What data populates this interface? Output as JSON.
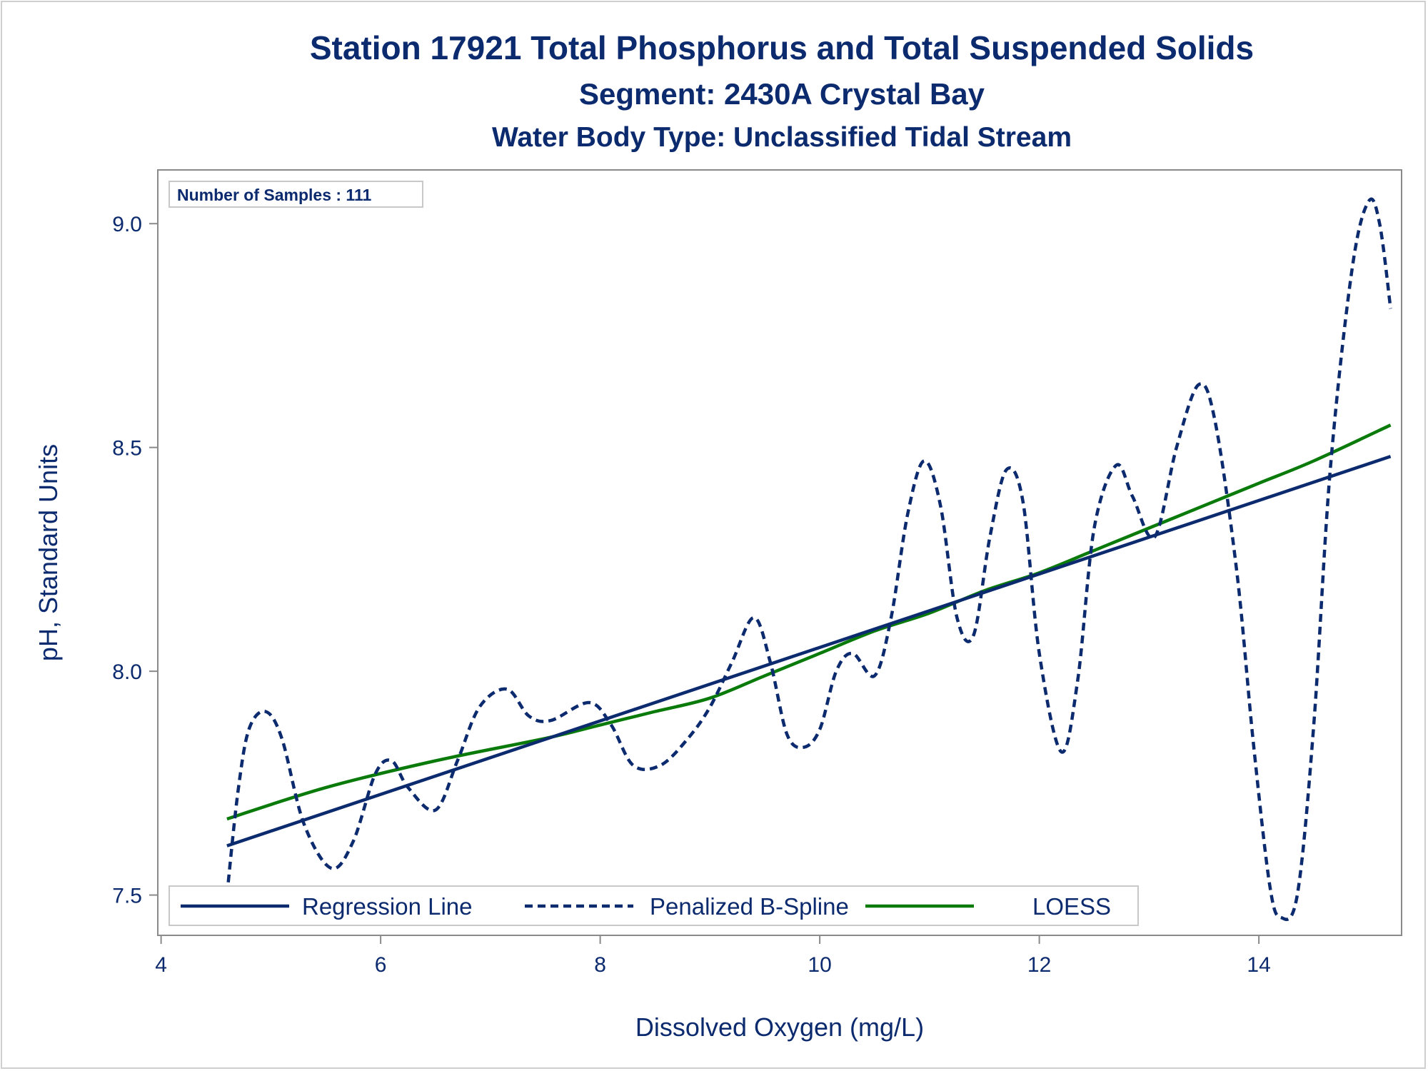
{
  "chart_data": {
    "type": "line",
    "title": "Station 17921  Total Phosphorus and Total Suspended Solids",
    "subtitle": "Segment: 2430A  Crystal Bay",
    "subtitle2": "Water Body Type: Unclassified Tidal Stream",
    "xlabel": "Dissolved Oxygen (mg/L)",
    "ylabel": "pH, Standard Units",
    "xlim": [
      3.97,
      15.3
    ],
    "ylim": [
      7.41,
      9.12
    ],
    "xticks": [
      4,
      6,
      8,
      10,
      12,
      14
    ],
    "yticks": [
      7.5,
      8.0,
      8.5,
      9.0
    ],
    "xtick_labels": [
      "4",
      "6",
      "8",
      "10",
      "12",
      "14"
    ],
    "ytick_labels": [
      "7.5",
      "8.0",
      "8.5",
      "9.0"
    ],
    "inset_text": "Number of Samples : 111",
    "grid": false,
    "legend_position": "bottom-left",
    "series": [
      {
        "name": "Regression Line",
        "style": "solid",
        "color": "#0c2a6e",
        "x": [
          4.6,
          15.2
        ],
        "y": [
          7.61,
          8.48
        ]
      },
      {
        "name": "Penalized B-Spline",
        "style": "dashed",
        "color": "#0c2a6e",
        "x": [
          4.6,
          4.7,
          4.8,
          4.95,
          5.1,
          5.3,
          5.55,
          5.75,
          5.95,
          6.1,
          6.25,
          6.5,
          6.7,
          6.9,
          7.15,
          7.35,
          7.55,
          7.9,
          8.1,
          8.3,
          8.55,
          8.8,
          9.0,
          9.2,
          9.4,
          9.55,
          9.7,
          9.85,
          10.0,
          10.15,
          10.3,
          10.5,
          10.65,
          10.8,
          10.95,
          11.1,
          11.25,
          11.4,
          11.55,
          11.7,
          11.85,
          12.0,
          12.2,
          12.35,
          12.5,
          12.7,
          12.85,
          13.05,
          13.25,
          13.45,
          13.6,
          13.8,
          13.95,
          14.1,
          14.2,
          14.35,
          14.5,
          14.65,
          14.85,
          15.0,
          15.1,
          15.2
        ],
        "y": [
          7.5,
          7.73,
          7.87,
          7.91,
          7.85,
          7.66,
          7.56,
          7.62,
          7.77,
          7.8,
          7.74,
          7.69,
          7.8,
          7.92,
          7.96,
          7.9,
          7.89,
          7.93,
          7.88,
          7.79,
          7.79,
          7.85,
          7.92,
          8.02,
          8.12,
          8.02,
          7.86,
          7.83,
          7.87,
          8.0,
          8.04,
          7.99,
          8.12,
          8.35,
          8.47,
          8.37,
          8.12,
          8.08,
          8.3,
          8.45,
          8.38,
          8.04,
          7.82,
          7.98,
          8.32,
          8.46,
          8.39,
          8.3,
          8.5,
          8.64,
          8.56,
          8.22,
          7.84,
          7.52,
          7.45,
          7.5,
          7.88,
          8.45,
          8.9,
          9.05,
          9.0,
          8.81
        ]
      },
      {
        "name": "LOESS",
        "style": "solid",
        "color": "#0a7b0a",
        "x": [
          4.6,
          5.5,
          6.5,
          7.5,
          8.0,
          8.5,
          9.0,
          9.5,
          10.0,
          10.5,
          11.0,
          11.5,
          12.0,
          12.5,
          13.0,
          13.5,
          14.0,
          14.5,
          15.2
        ],
        "y": [
          7.67,
          7.74,
          7.8,
          7.85,
          7.88,
          7.91,
          7.94,
          7.99,
          8.04,
          8.09,
          8.13,
          8.18,
          8.22,
          8.27,
          8.32,
          8.37,
          8.42,
          8.47,
          8.55
        ]
      }
    ]
  }
}
